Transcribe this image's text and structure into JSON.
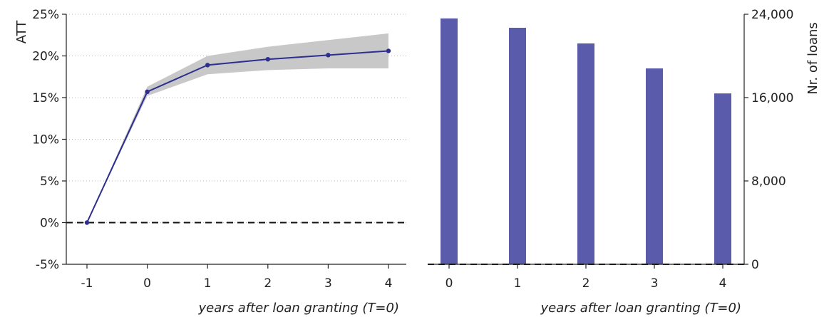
{
  "chart_data": [
    {
      "type": "line",
      "ylabel": "ATT",
      "xlabel": "years after loan granting (T=0)",
      "ylim": [
        -5,
        25
      ],
      "yticks": [
        -5,
        0,
        5,
        10,
        15,
        20,
        25
      ],
      "ytick_labels": [
        "-5%",
        "0%",
        "5%",
        "10%",
        "15%",
        "20%",
        "25%"
      ],
      "x": [
        -1,
        0,
        1,
        2,
        3,
        4
      ],
      "xtick_labels": [
        "-1",
        "0",
        "1",
        "2",
        "3",
        "4"
      ],
      "y": [
        0,
        15.7,
        18.9,
        19.6,
        20.1,
        20.6
      ],
      "ci_lower": [
        0,
        15.2,
        17.8,
        18.3,
        18.5,
        18.5
      ],
      "ci_upper": [
        0,
        16.3,
        20.0,
        21.1,
        21.9,
        22.7
      ],
      "reference_line_y": 0,
      "grid": "horizontal dotted",
      "colors": {
        "line": "#2e2e8f",
        "band": "#c8c8c8"
      }
    },
    {
      "type": "bar",
      "ylabel": "Nr. of loans",
      "xlabel": "years after loan granting (T=0)",
      "ylim": [
        0,
        24000
      ],
      "yticks": [
        0,
        8000,
        16000,
        24000
      ],
      "ytick_labels": [
        "0",
        "8,000",
        "16,000",
        "24,000"
      ],
      "y_axis_side": "right",
      "categories": [
        "0",
        "1",
        "2",
        "3",
        "4"
      ],
      "values": [
        23600,
        22700,
        21200,
        18800,
        16400
      ],
      "reference_line_y": 0,
      "colors": {
        "bar": "#5b5bab"
      }
    }
  ]
}
